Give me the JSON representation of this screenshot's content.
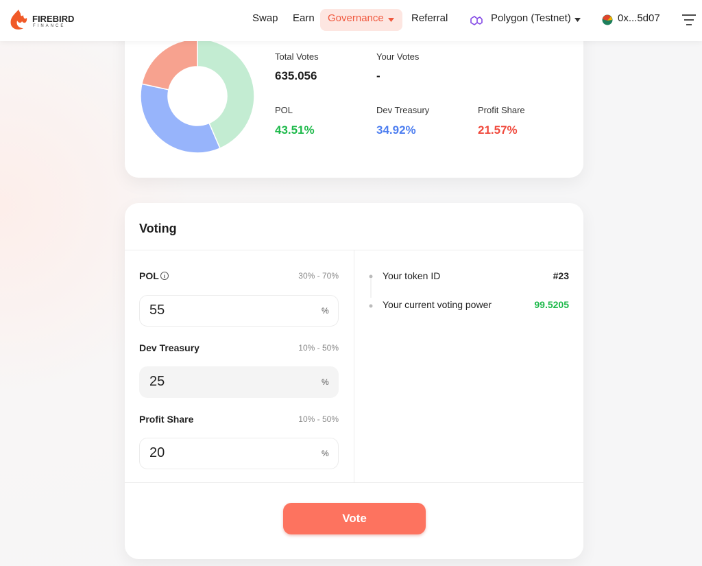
{
  "header": {
    "logo": "FIREBIRD",
    "logo_sub": "FINANCE",
    "nav": [
      "Swap",
      "Earn",
      "Governance",
      "Referral"
    ],
    "network": "Polygon (Testnet)",
    "account": "0x...5d07"
  },
  "summary": {
    "total_votes_label": "Total Votes",
    "total_votes": "635.056",
    "your_votes_label": "Your Votes",
    "your_votes": "-"
  },
  "chart_data": {
    "type": "pie",
    "categories": [
      "POL",
      "Dev Treasury",
      "Profit Share"
    ],
    "values": [
      43.51,
      34.92,
      21.57
    ],
    "value_labels": [
      "43.51%",
      "34.92%",
      "21.57%"
    ],
    "colors": [
      "#c3ecd2",
      "#97b4fb",
      "#f7a28f"
    ],
    "label_colors": [
      "#1db94a",
      "#4d7ef0",
      "#f0493c"
    ]
  },
  "voting": {
    "title": "Voting",
    "fields": [
      {
        "label": "POL",
        "range": "30% - 70%",
        "value": "55",
        "unit": "%"
      },
      {
        "label": "Dev Treasury",
        "range": "10% - 50%",
        "value": "25",
        "unit": "%"
      },
      {
        "label": "Profit Share",
        "range": "10% - 50%",
        "value": "20",
        "unit": "%"
      }
    ],
    "info": [
      {
        "label": "Your token ID",
        "value": "#23"
      },
      {
        "label": "Your current voting power",
        "value": "99.5205"
      }
    ],
    "button": "Vote"
  }
}
